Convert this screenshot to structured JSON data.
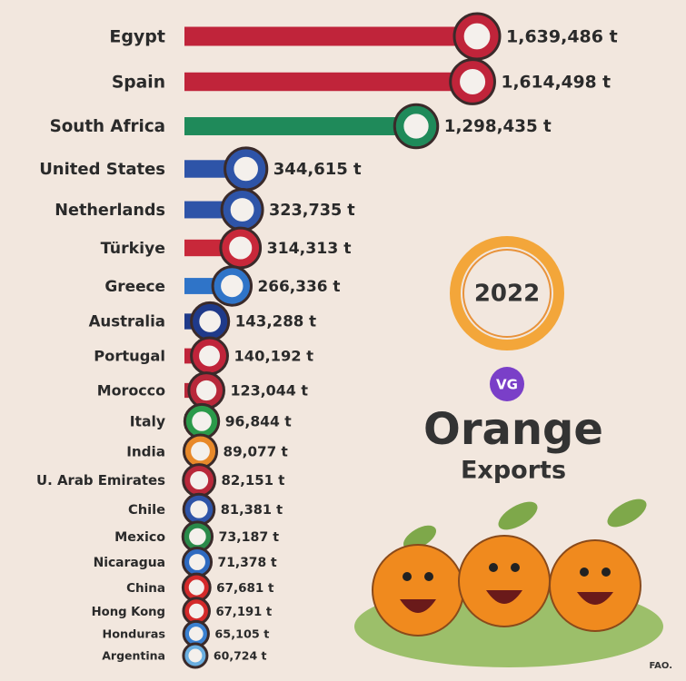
{
  "chart_data": {
    "type": "bar",
    "orientation": "horizontal",
    "title": "Orange",
    "subtitle": "Exports",
    "year": "2022",
    "logo": "VG",
    "source": "FAO.",
    "categories": [
      "Egypt",
      "Spain",
      "South Africa",
      "United States",
      "Netherlands",
      "Türkiye",
      "Greece",
      "Australia",
      "Portugal",
      "Morocco",
      "Italy",
      "India",
      "U. Arab Emirates",
      "Chile",
      "Mexico",
      "Nicaragua",
      "China",
      "Hong Kong",
      "Honduras",
      "Argentina"
    ],
    "values": [
      1639486,
      1614498,
      1298435,
      344615,
      323735,
      314313,
      266336,
      143288,
      140192,
      123044,
      96844,
      89077,
      82151,
      81381,
      73187,
      71378,
      67681,
      67191,
      65105,
      60724
    ],
    "value_labels": [
      "1,639,486 t",
      "1,614,498 t",
      "1,298,435 t",
      "344,615 t",
      "323,735 t",
      "314,313 t",
      "266,336 t",
      "143,288 t",
      "140,192 t",
      "123,044 t",
      "96,844 t",
      "89,077 t",
      "82,151 t",
      "81,381 t",
      "73,187 t",
      "71,378 t",
      "67,681 t",
      "67,191 t",
      "65,105 t",
      "60,724 t"
    ],
    "colors": [
      "#c0243a",
      "#c0243a",
      "#1f8a5a",
      "#2e54a8",
      "#2e54a8",
      "#c8283a",
      "#2f74c8",
      "#1f3a8a",
      "#c0243a",
      "#b8283a",
      "#2a9a4a",
      "#e8892a",
      "#b8283a",
      "#2e54a8",
      "#2a8a4a",
      "#2e6ac0",
      "#d42a2a",
      "#d42a2a",
      "#3a80d0",
      "#6aaee0"
    ]
  }
}
